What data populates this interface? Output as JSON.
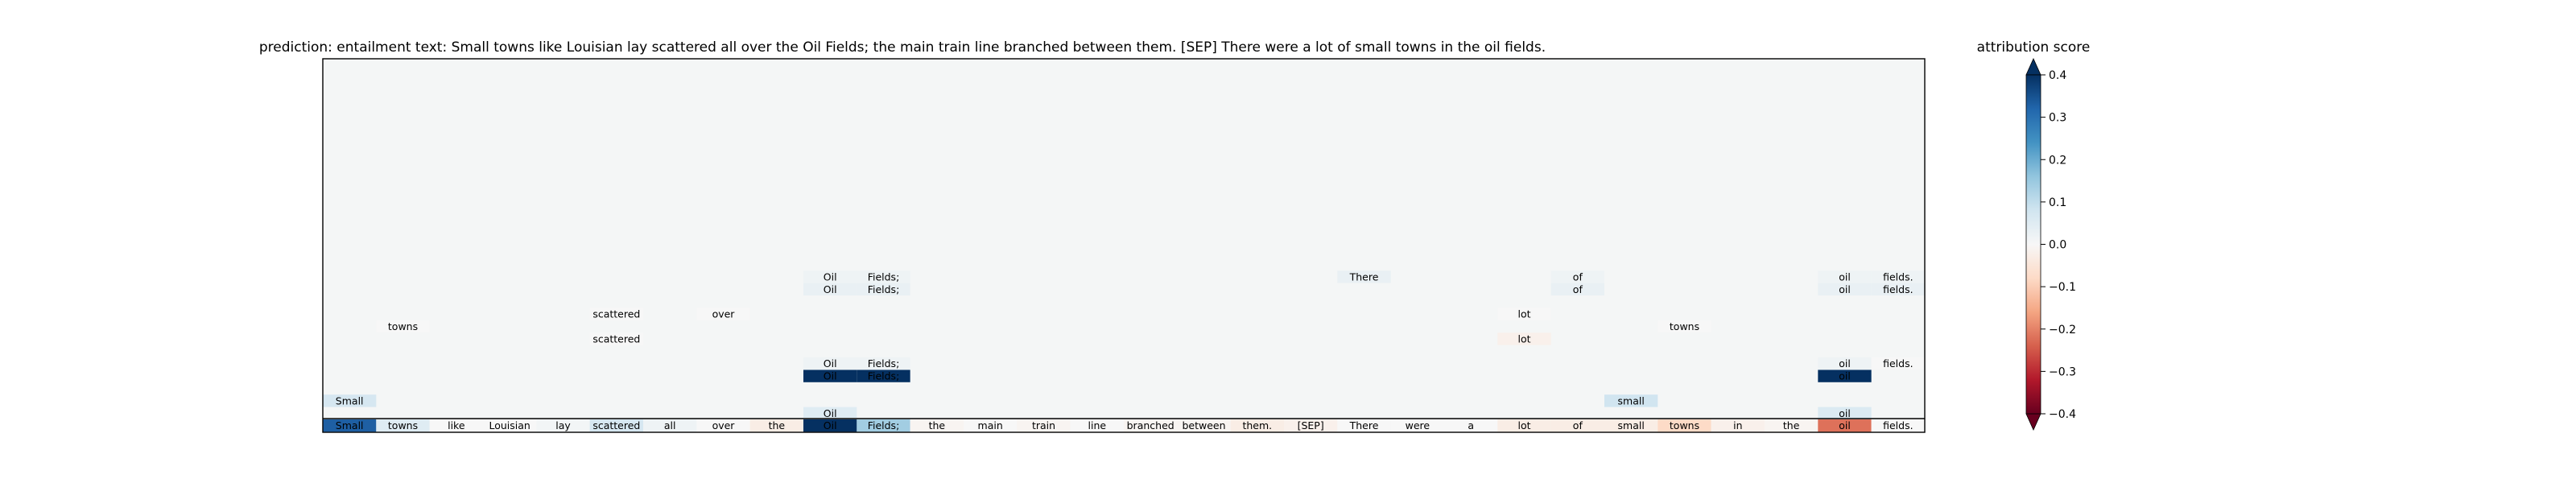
{
  "chart_data": {
    "type": "heatmap",
    "title": "prediction:  entailment     text:  Small towns like Louisian lay scattered all over the Oil Fields; the main train line branched between them. [SEP] There were a lot of small towns in the oil fields.",
    "colorbar_label": "attribution score",
    "colorbar_ticks": [
      0.4,
      0.3,
      0.2,
      0.1,
      0.0,
      -0.1,
      -0.2,
      -0.3,
      -0.4
    ],
    "colorbar_tick_labels": [
      "0.4",
      "0.3",
      "0.2",
      "0.1",
      "0.0",
      "−0.1",
      "−0.2",
      "−0.3",
      "−0.4"
    ],
    "colorbar_range": [
      -0.4,
      0.4
    ],
    "colormap": "RdBu",
    "background_color": "#f4f6f6",
    "tokens": [
      "Small",
      "towns",
      "like",
      "Louisian",
      "lay",
      "scattered",
      "all",
      "over",
      "the",
      "Oil",
      "Fields;",
      "the",
      "main",
      "train",
      "line",
      "branched",
      "between",
      "them.",
      "[SEP]",
      "There",
      "were",
      "a",
      "lot",
      "of",
      "small",
      "towns",
      "in",
      "the",
      "oil",
      "fields."
    ],
    "token_scores": [
      0.33,
      0.05,
      0.0,
      0.0,
      0.01,
      0.07,
      0.02,
      0.0,
      -0.03,
      0.5,
      0.14,
      -0.01,
      0.0,
      -0.01,
      0.0,
      -0.01,
      -0.01,
      -0.03,
      -0.02,
      0.0,
      0.0,
      0.0,
      -0.03,
      -0.03,
      -0.03,
      -0.08,
      -0.02,
      -0.01,
      -0.22,
      0.0
    ],
    "rows": [
      {
        "row": 1,
        "cells": [
          {
            "token": "Oil",
            "value": 0.05
          },
          {
            "token": "oil",
            "value": 0.06
          }
        ]
      },
      {
        "row": 2,
        "cells": [
          {
            "token": "Small",
            "value": 0.07
          },
          {
            "token": "small",
            "value": 0.08
          }
        ]
      },
      {
        "row": 4,
        "cells": [
          {
            "token": "Oil",
            "value": 0.5
          },
          {
            "token": "Fields;",
            "value": 0.45
          },
          {
            "token": "oil",
            "value": 0.5
          }
        ]
      },
      {
        "row": 5,
        "cells": [
          {
            "token": "Oil",
            "value": 0.02
          },
          {
            "token": "Fields;",
            "value": 0.02
          },
          {
            "token": "oil",
            "value": 0.02
          },
          {
            "token": "fields.",
            "value": 0.0
          }
        ]
      },
      {
        "row": 7,
        "cells": [
          {
            "token": "scattered",
            "value": 0.0
          },
          {
            "token": "lot",
            "value": -0.02
          }
        ]
      },
      {
        "row": 8,
        "cells": [
          {
            "token": "towns",
            "value": 0.0
          },
          {
            "token": "towns",
            "value": 0.0
          }
        ]
      },
      {
        "row": 9,
        "cells": [
          {
            "token": "scattered",
            "value": 0.0
          },
          {
            "token": "over",
            "value": 0.0
          },
          {
            "token": "lot",
            "value": 0.0
          }
        ]
      },
      {
        "row": 11,
        "cells": [
          {
            "token": "Oil",
            "value": 0.03
          },
          {
            "token": "Fields;",
            "value": 0.03
          },
          {
            "token": "of",
            "value": 0.03
          },
          {
            "token": "oil",
            "value": 0.03
          },
          {
            "token": "fields.",
            "value": 0.03
          }
        ]
      },
      {
        "row": 12,
        "cells": [
          {
            "token": "Oil",
            "value": 0.02
          },
          {
            "token": "Fields;",
            "value": 0.02
          },
          {
            "token": "There",
            "value": 0.03
          },
          {
            "token": "of",
            "value": 0.02
          },
          {
            "token": "oil",
            "value": 0.02
          },
          {
            "token": "fields.",
            "value": 0.02
          }
        ]
      }
    ]
  }
}
